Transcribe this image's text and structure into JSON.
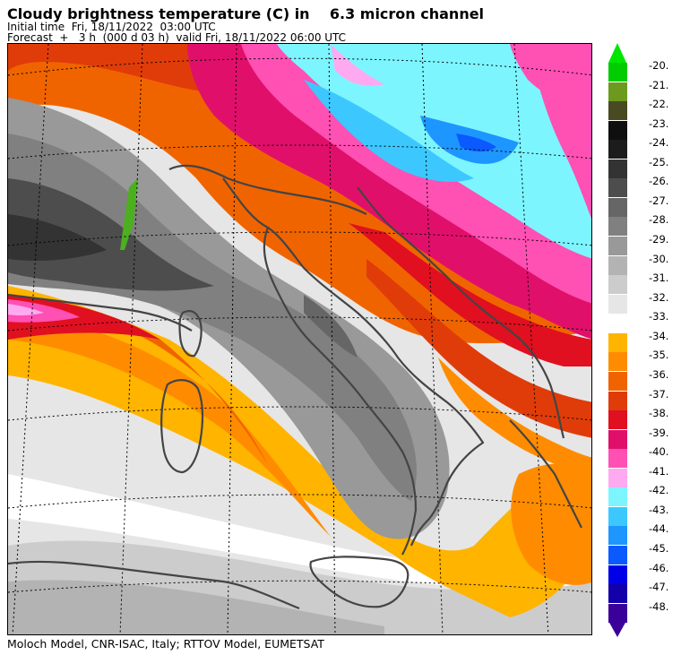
{
  "header": {
    "title": "Cloudy brightness temperature (C) in    6.3 micron channel",
    "initial": "Initial time  Fri, 18/11/2022  03:00 UTC",
    "forecast": "Forecast  +   3 h  (000 d 03 h)  valid Fri, 18/11/2022 06:00 UTC"
  },
  "footer": "Moloch Model, CNR-ISAC, Italy; RTTOV Model, EUMETSAT",
  "colorbar": {
    "top_arrow_color": "#00e600",
    "bottom_arrow_color": "#3a0099",
    "levels": [
      {
        "label": "-20.",
        "color": "#00cc00"
      },
      {
        "label": "-21.",
        "color": "#6b9a1f"
      },
      {
        "label": "-22.",
        "color": "#4a4a22"
      },
      {
        "label": "-23.",
        "color": "#0f0f0f"
      },
      {
        "label": "-24.",
        "color": "#1c1c1c"
      },
      {
        "label": "-25.",
        "color": "#333333"
      },
      {
        "label": "-26.",
        "color": "#4d4d4d"
      },
      {
        "label": "-27.",
        "color": "#666666"
      },
      {
        "label": "-28.",
        "color": "#808080"
      },
      {
        "label": "-29.",
        "color": "#999999"
      },
      {
        "label": "-30.",
        "color": "#b3b3b3"
      },
      {
        "label": "-31.",
        "color": "#cccccc"
      },
      {
        "label": "-32.",
        "color": "#e6e6e6"
      },
      {
        "label": "-33.",
        "color": "#ffffff"
      },
      {
        "label": "-34.",
        "color": "#ffb400"
      },
      {
        "label": "-35.",
        "color": "#ff8c00"
      },
      {
        "label": "-36.",
        "color": "#f06400"
      },
      {
        "label": "-37.",
        "color": "#e03c0a"
      },
      {
        "label": "-38.",
        "color": "#e01020"
      },
      {
        "label": "-39.",
        "color": "#e0106a"
      },
      {
        "label": "-40.",
        "color": "#ff50b4"
      },
      {
        "label": "-41.",
        "color": "#ffaaf0"
      },
      {
        "label": "-42.",
        "color": "#7df5ff"
      },
      {
        "label": "-43.",
        "color": "#3cc8ff"
      },
      {
        "label": "-44.",
        "color": "#1e96ff"
      },
      {
        "label": "-45.",
        "color": "#0a5aff"
      },
      {
        "label": "-46.",
        "color": "#0000e6"
      },
      {
        "label": "-47.",
        "color": "#1400aa"
      },
      {
        "label": "-48.",
        "color": "#3a0099"
      }
    ]
  }
}
